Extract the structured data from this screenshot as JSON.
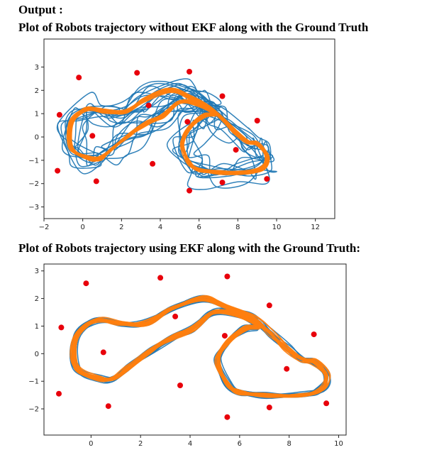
{
  "headings": {
    "output": "Output :",
    "plot1": "Plot of Robots trajectory without EKF along with the Ground Truth",
    "plot2": "Plot of Robots trajectory using EKF along with the Ground Truth:"
  },
  "colors": {
    "estimate": "#1f77b4",
    "ground_truth": "#ff7f0e",
    "landmark": "#e8000b"
  },
  "chart_data": [
    {
      "type": "line",
      "title": "Plot of Robots trajectory without EKF along with the Ground Truth",
      "xlim": [
        -2,
        13
      ],
      "ylim": [
        -3.5,
        4.2
      ],
      "xticks": [
        -2,
        0,
        2,
        4,
        6,
        8,
        10,
        12
      ],
      "yticks": [
        -3,
        -2,
        -1,
        0,
        1,
        2,
        3
      ],
      "landmarks": [
        [
          -0.2,
          2.55
        ],
        [
          2.8,
          2.75
        ],
        [
          5.5,
          2.8
        ],
        [
          -1.2,
          0.95
        ],
        [
          3.4,
          1.35
        ],
        [
          7.2,
          1.75
        ],
        [
          0.5,
          0.05
        ],
        [
          5.4,
          0.65
        ],
        [
          9.0,
          0.7
        ],
        [
          7.9,
          -0.55
        ],
        [
          -1.3,
          -1.45
        ],
        [
          3.6,
          -1.15
        ],
        [
          0.7,
          -1.9
        ],
        [
          5.5,
          -2.3
        ],
        [
          7.2,
          -1.95
        ],
        [
          9.5,
          -1.8
        ]
      ],
      "series": [
        {
          "role": "estimate",
          "loops": 12,
          "jitter": 0.85
        },
        {
          "role": "ground_truth",
          "loops": 18,
          "jitter": 0.12
        }
      ]
    },
    {
      "type": "line",
      "title": "Plot of Robots trajectory using EKF along with the Ground Truth:",
      "xlim": [
        -1.9,
        10.3
      ],
      "ylim": [
        -2.95,
        3.25
      ],
      "xticks": [
        0,
        2,
        4,
        6,
        8,
        10
      ],
      "yticks": [
        -2,
        -1,
        0,
        1,
        2,
        3
      ],
      "landmarks": [
        [
          -0.2,
          2.55
        ],
        [
          2.8,
          2.75
        ],
        [
          5.5,
          2.8
        ],
        [
          -1.2,
          0.95
        ],
        [
          3.4,
          1.35
        ],
        [
          7.2,
          1.75
        ],
        [
          0.5,
          0.05
        ],
        [
          5.4,
          0.65
        ],
        [
          9.0,
          0.7
        ],
        [
          7.9,
          -0.55
        ],
        [
          -1.3,
          -1.45
        ],
        [
          3.6,
          -1.15
        ],
        [
          0.7,
          -1.9
        ],
        [
          5.5,
          -2.3
        ],
        [
          7.2,
          -1.95
        ],
        [
          9.5,
          -1.8
        ]
      ],
      "series": [
        {
          "role": "estimate",
          "loops": 16,
          "jitter": 0.16
        },
        {
          "role": "ground_truth",
          "loops": 16,
          "jitter": 0.13
        }
      ]
    }
  ]
}
